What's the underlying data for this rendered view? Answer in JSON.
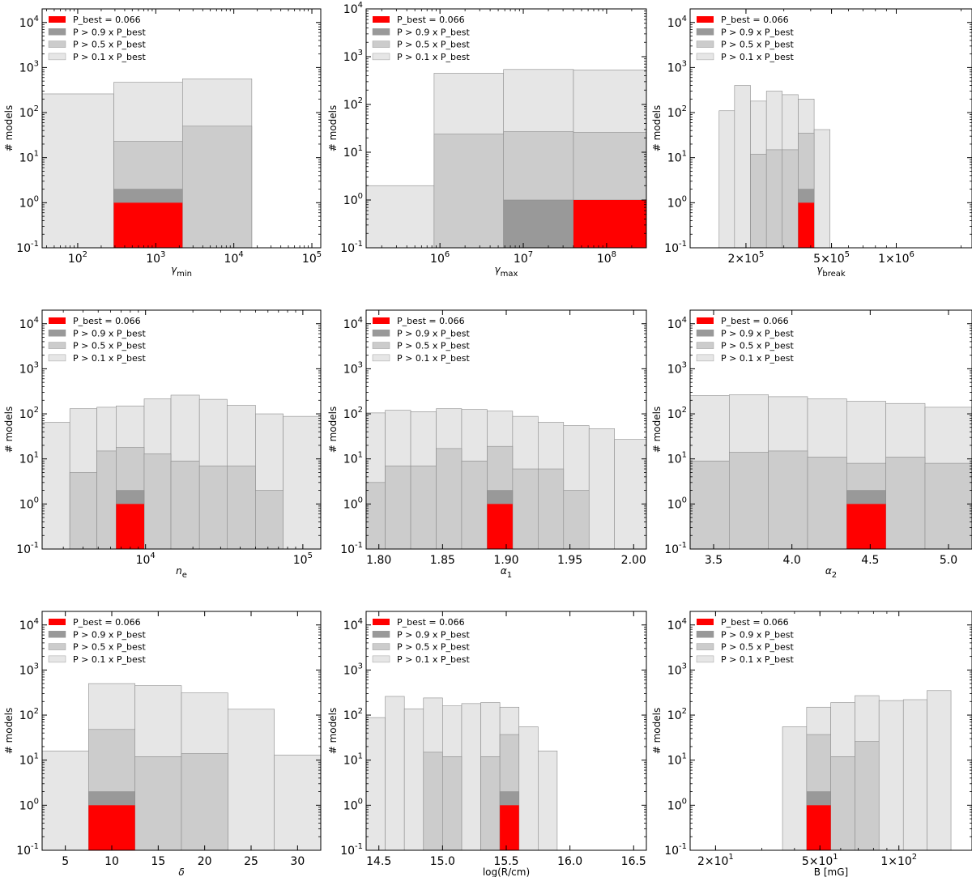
{
  "ylabel": "# models",
  "legend_labels": [
    "P_best = 0.066",
    "P > 0.9 x P_best",
    "P > 0.5 x P_best",
    "P > 0.1 x P_best"
  ],
  "colors": {
    "best": "#ff0000",
    "p09": "#999999",
    "p05": "#cccccc",
    "p01": "#e6e6e6",
    "edge": "#8c8c8c",
    "axis": "#000000"
  },
  "chart_data": [
    {
      "type": "bar",
      "xlabel": "γ_min",
      "xscale": "log",
      "xlim": [
        35,
        130000
      ],
      "yscale": "log",
      "ylim": [
        0.1,
        20000
      ],
      "legend_position": "top-left",
      "xticks": [
        {
          "value": 100,
          "base": "10",
          "exp": "2"
        },
        {
          "value": 1000,
          "base": "10",
          "exp": "3"
        },
        {
          "value": 10000,
          "base": "10",
          "exp": "4"
        },
        {
          "value": 100000,
          "base": "10",
          "exp": "5"
        }
      ],
      "bins": [
        {
          "x0": 35,
          "x1": 290,
          "p01": 260,
          "p05": 0,
          "p09": 0,
          "best": 0
        },
        {
          "x0": 290,
          "x1": 2200,
          "p01": 470,
          "p05": 23,
          "p09": 2,
          "best": 1
        },
        {
          "x0": 2200,
          "x1": 17000,
          "p01": 560,
          "p05": 50,
          "p09": 0,
          "best": 0
        }
      ]
    },
    {
      "type": "bar",
      "xlabel": "γ_max",
      "xscale": "log",
      "xlim": [
        130000,
        300000000
      ],
      "yscale": "log",
      "ylim": [
        0.1,
        10000
      ],
      "legend_position": "top-left",
      "xticks": [
        {
          "value": 1000000,
          "base": "10",
          "exp": "6"
        },
        {
          "value": 10000000,
          "base": "10",
          "exp": "7"
        },
        {
          "value": 100000000,
          "base": "10",
          "exp": "8"
        }
      ],
      "bins": [
        {
          "x0": 130000,
          "x1": 850000,
          "p01": 2,
          "p05": 0,
          "p09": 0,
          "best": 0
        },
        {
          "x0": 850000,
          "x1": 5800000,
          "p01": 450,
          "p05": 24,
          "p09": 0,
          "best": 0
        },
        {
          "x0": 5800000,
          "x1": 40000000,
          "p01": 540,
          "p05": 27,
          "p09": 1,
          "best": 0
        },
        {
          "x0": 40000000,
          "x1": 300000000,
          "p01": 530,
          "p05": 26,
          "p09": 1,
          "best": 1
        }
      ]
    },
    {
      "type": "bar",
      "xlabel": "γ_break",
      "xscale": "log",
      "xlim": [
        110000,
        2250000
      ],
      "yscale": "log",
      "ylim": [
        0.1,
        20000
      ],
      "legend_position": "top-left",
      "xticks": [
        {
          "value": 200000,
          "base": "2×10",
          "exp": "5"
        },
        {
          "value": 500000,
          "base": "5×10",
          "exp": "5"
        },
        {
          "value": 1000000,
          "base": "1×10",
          "exp": "6"
        }
      ],
      "bins": [
        {
          "x0": 150000,
          "x1": 177000,
          "p01": 110,
          "p05": 0,
          "p09": 0,
          "best": 0
        },
        {
          "x0": 177000,
          "x1": 210000,
          "p01": 400,
          "p05": 0,
          "p09": 0,
          "best": 0
        },
        {
          "x0": 210000,
          "x1": 249000,
          "p01": 180,
          "p05": 12,
          "p09": 0,
          "best": 0
        },
        {
          "x0": 249000,
          "x1": 295000,
          "p01": 300,
          "p05": 15,
          "p09": 0,
          "best": 0
        },
        {
          "x0": 295000,
          "x1": 350000,
          "p01": 250,
          "p05": 15,
          "p09": 0,
          "best": 0
        },
        {
          "x0": 350000,
          "x1": 415000,
          "p01": 200,
          "p05": 35,
          "p09": 2,
          "best": 1
        },
        {
          "x0": 415000,
          "x1": 492000,
          "p01": 42,
          "p05": 0,
          "p09": 0,
          "best": 0
        }
      ]
    },
    {
      "type": "bar",
      "xlabel": "n_e",
      "xscale": "log",
      "xlim": [
        2200,
        130000
      ],
      "yscale": "log",
      "ylim": [
        0.1,
        20000
      ],
      "legend_position": "top-left",
      "xticks": [
        {
          "value": 10000,
          "base": "10",
          "exp": "4"
        },
        {
          "value": 100000,
          "base": "10",
          "exp": "5"
        }
      ],
      "bins": [
        {
          "x0": 2200,
          "x1": 3300,
          "p01": 65,
          "p05": 0,
          "p09": 0,
          "best": 0
        },
        {
          "x0": 3300,
          "x1": 4900,
          "p01": 130,
          "p05": 5,
          "p09": 0,
          "best": 0
        },
        {
          "x0": 4900,
          "x1": 6500,
          "p01": 140,
          "p05": 15,
          "p09": 0,
          "best": 0
        },
        {
          "x0": 6500,
          "x1": 9800,
          "p01": 150,
          "p05": 18,
          "p09": 2,
          "best": 1
        },
        {
          "x0": 9800,
          "x1": 14500,
          "p01": 215,
          "p05": 13,
          "p09": 0,
          "best": 0
        },
        {
          "x0": 14500,
          "x1": 22000,
          "p01": 260,
          "p05": 9,
          "p09": 0,
          "best": 0
        },
        {
          "x0": 22000,
          "x1": 33000,
          "p01": 210,
          "p05": 7,
          "p09": 0,
          "best": 0
        },
        {
          "x0": 33000,
          "x1": 50000,
          "p01": 155,
          "p05": 7,
          "p09": 0,
          "best": 0
        },
        {
          "x0": 50000,
          "x1": 75000,
          "p01": 100,
          "p05": 2,
          "p09": 0,
          "best": 0
        },
        {
          "x0": 75000,
          "x1": 130000,
          "p01": 88,
          "p05": 0,
          "p09": 0,
          "best": 0
        }
      ]
    },
    {
      "type": "bar",
      "xlabel": "α_1",
      "xscale": "linear",
      "xlim": [
        1.79,
        2.01
      ],
      "yscale": "log",
      "ylim": [
        0.1,
        20000
      ],
      "legend_position": "top-left",
      "xticks": [
        {
          "value": 1.8,
          "base": "1.80",
          "exp": ""
        },
        {
          "value": 1.85,
          "base": "1.85",
          "exp": ""
        },
        {
          "value": 1.9,
          "base": "1.90",
          "exp": ""
        },
        {
          "value": 1.95,
          "base": "1.95",
          "exp": ""
        },
        {
          "value": 2.0,
          "base": "2.00",
          "exp": ""
        }
      ],
      "bins": [
        {
          "x0": 1.79,
          "x1": 1.805,
          "p01": 105,
          "p05": 3,
          "p09": 0,
          "best": 0
        },
        {
          "x0": 1.805,
          "x1": 1.825,
          "p01": 120,
          "p05": 7,
          "p09": 0,
          "best": 0
        },
        {
          "x0": 1.825,
          "x1": 1.845,
          "p01": 112,
          "p05": 7,
          "p09": 0,
          "best": 0
        },
        {
          "x0": 1.845,
          "x1": 1.865,
          "p01": 130,
          "p05": 17,
          "p09": 0,
          "best": 0
        },
        {
          "x0": 1.865,
          "x1": 1.885,
          "p01": 125,
          "p05": 9,
          "p09": 0,
          "best": 0
        },
        {
          "x0": 1.885,
          "x1": 1.905,
          "p01": 115,
          "p05": 19,
          "p09": 2,
          "best": 1
        },
        {
          "x0": 1.905,
          "x1": 1.925,
          "p01": 88,
          "p05": 6,
          "p09": 0,
          "best": 0
        },
        {
          "x0": 1.925,
          "x1": 1.945,
          "p01": 65,
          "p05": 6,
          "p09": 0,
          "best": 0
        },
        {
          "x0": 1.945,
          "x1": 1.965,
          "p01": 55,
          "p05": 2,
          "p09": 0,
          "best": 0
        },
        {
          "x0": 1.965,
          "x1": 1.985,
          "p01": 47,
          "p05": 0,
          "p09": 0,
          "best": 0
        },
        {
          "x0": 1.985,
          "x1": 2.01,
          "p01": 27,
          "p05": 0,
          "p09": 0,
          "best": 0
        }
      ]
    },
    {
      "type": "bar",
      "xlabel": "α_2",
      "xscale": "linear",
      "xlim": [
        3.35,
        5.15
      ],
      "yscale": "log",
      "ylim": [
        0.1,
        20000
      ],
      "legend_position": "top-left",
      "xticks": [
        {
          "value": 3.5,
          "base": "3.5",
          "exp": ""
        },
        {
          "value": 4.0,
          "base": "4.0",
          "exp": ""
        },
        {
          "value": 4.5,
          "base": "4.5",
          "exp": ""
        },
        {
          "value": 5.0,
          "base": "5.0",
          "exp": ""
        }
      ],
      "bins": [
        {
          "x0": 3.35,
          "x1": 3.6,
          "p01": 255,
          "p05": 9,
          "p09": 0,
          "best": 0
        },
        {
          "x0": 3.6,
          "x1": 3.85,
          "p01": 265,
          "p05": 14,
          "p09": 0,
          "best": 0
        },
        {
          "x0": 3.85,
          "x1": 4.1,
          "p01": 240,
          "p05": 15,
          "p09": 0,
          "best": 0
        },
        {
          "x0": 4.1,
          "x1": 4.35,
          "p01": 215,
          "p05": 11,
          "p09": 0,
          "best": 0
        },
        {
          "x0": 4.35,
          "x1": 4.6,
          "p01": 190,
          "p05": 8,
          "p09": 2,
          "best": 1
        },
        {
          "x0": 4.6,
          "x1": 4.85,
          "p01": 170,
          "p05": 11,
          "p09": 0,
          "best": 0
        },
        {
          "x0": 4.85,
          "x1": 5.15,
          "p01": 140,
          "p05": 8,
          "p09": 0,
          "best": 0
        }
      ]
    },
    {
      "type": "bar",
      "xlabel": "δ",
      "xscale": "linear",
      "xlim": [
        2.5,
        32.5
      ],
      "yscale": "log",
      "ylim": [
        0.1,
        20000
      ],
      "legend_position": "top-left",
      "xticks": [
        {
          "value": 5,
          "base": "5",
          "exp": ""
        },
        {
          "value": 10,
          "base": "10",
          "exp": ""
        },
        {
          "value": 15,
          "base": "15",
          "exp": ""
        },
        {
          "value": 20,
          "base": "20",
          "exp": ""
        },
        {
          "value": 25,
          "base": "25",
          "exp": ""
        },
        {
          "value": 30,
          "base": "30",
          "exp": ""
        }
      ],
      "bins": [
        {
          "x0": 2.5,
          "x1": 7.5,
          "p01": 16,
          "p05": 0,
          "p09": 0,
          "best": 0
        },
        {
          "x0": 7.5,
          "x1": 12.5,
          "p01": 500,
          "p05": 48,
          "p09": 2,
          "best": 1
        },
        {
          "x0": 12.5,
          "x1": 17.5,
          "p01": 450,
          "p05": 12,
          "p09": 0,
          "best": 0
        },
        {
          "x0": 17.5,
          "x1": 22.5,
          "p01": 310,
          "p05": 14,
          "p09": 0,
          "best": 0
        },
        {
          "x0": 22.5,
          "x1": 27.5,
          "p01": 135,
          "p05": 0,
          "p09": 0,
          "best": 0
        },
        {
          "x0": 27.5,
          "x1": 32.5,
          "p01": 13,
          "p05": 0,
          "p09": 0,
          "best": 0
        }
      ]
    },
    {
      "type": "bar",
      "xlabel": "log(R/cm)",
      "xscale": "linear",
      "xlim": [
        14.4,
        16.6
      ],
      "yscale": "log",
      "ylim": [
        0.1,
        20000
      ],
      "legend_position": "top-left",
      "xticks": [
        {
          "value": 14.5,
          "base": "14.5",
          "exp": ""
        },
        {
          "value": 15.0,
          "base": "15.0",
          "exp": ""
        },
        {
          "value": 15.5,
          "base": "15.5",
          "exp": ""
        },
        {
          "value": 16.0,
          "base": "16.0",
          "exp": ""
        },
        {
          "value": 16.5,
          "base": "16.5",
          "exp": ""
        }
      ],
      "bins": [
        {
          "x0": 14.4,
          "x1": 14.55,
          "p01": 88,
          "p05": 0,
          "p09": 0,
          "best": 0
        },
        {
          "x0": 14.55,
          "x1": 14.7,
          "p01": 260,
          "p05": 0,
          "p09": 0,
          "best": 0
        },
        {
          "x0": 14.7,
          "x1": 14.85,
          "p01": 138,
          "p05": 0,
          "p09": 0,
          "best": 0
        },
        {
          "x0": 14.85,
          "x1": 15.0,
          "p01": 240,
          "p05": 15,
          "p09": 0,
          "best": 0
        },
        {
          "x0": 15.0,
          "x1": 15.15,
          "p01": 160,
          "p05": 12,
          "p09": 0,
          "best": 0
        },
        {
          "x0": 15.15,
          "x1": 15.3,
          "p01": 180,
          "p05": 0,
          "p09": 0,
          "best": 0
        },
        {
          "x0": 15.3,
          "x1": 15.45,
          "p01": 190,
          "p05": 12,
          "p09": 0,
          "best": 0
        },
        {
          "x0": 15.45,
          "x1": 15.6,
          "p01": 150,
          "p05": 37,
          "p09": 2,
          "best": 1
        },
        {
          "x0": 15.6,
          "x1": 15.75,
          "p01": 55,
          "p05": 0,
          "p09": 0,
          "best": 0
        },
        {
          "x0": 15.75,
          "x1": 15.9,
          "p01": 16,
          "p05": 0,
          "p09": 0,
          "best": 0
        }
      ]
    },
    {
      "type": "bar",
      "xlabel": "B [mG]",
      "xscale": "log",
      "xlim": [
        16,
        190
      ],
      "yscale": "log",
      "ylim": [
        0.1,
        20000
      ],
      "legend_position": "top-left",
      "xticks": [
        {
          "value": 20,
          "base": "2×10",
          "exp": "1"
        },
        {
          "value": 50,
          "base": "5×10",
          "exp": "1"
        },
        {
          "value": 100,
          "base": "1×10",
          "exp": "2"
        }
      ],
      "bins": [
        {
          "x0": 36,
          "x1": 44.5,
          "p01": 55,
          "p05": 0,
          "p09": 0,
          "best": 0
        },
        {
          "x0": 44.5,
          "x1": 55,
          "p01": 150,
          "p05": 37,
          "p09": 2,
          "best": 1
        },
        {
          "x0": 55,
          "x1": 68,
          "p01": 190,
          "p05": 12,
          "p09": 0,
          "best": 0
        },
        {
          "x0": 68,
          "x1": 84,
          "p01": 270,
          "p05": 26,
          "p09": 0,
          "best": 0
        },
        {
          "x0": 84,
          "x1": 104,
          "p01": 210,
          "p05": 0,
          "p09": 0,
          "best": 0
        },
        {
          "x0": 104,
          "x1": 128,
          "p01": 220,
          "p05": 0,
          "p09": 0,
          "best": 0
        },
        {
          "x0": 128,
          "x1": 158,
          "p01": 350,
          "p05": 0,
          "p09": 0,
          "best": 0
        }
      ]
    }
  ]
}
